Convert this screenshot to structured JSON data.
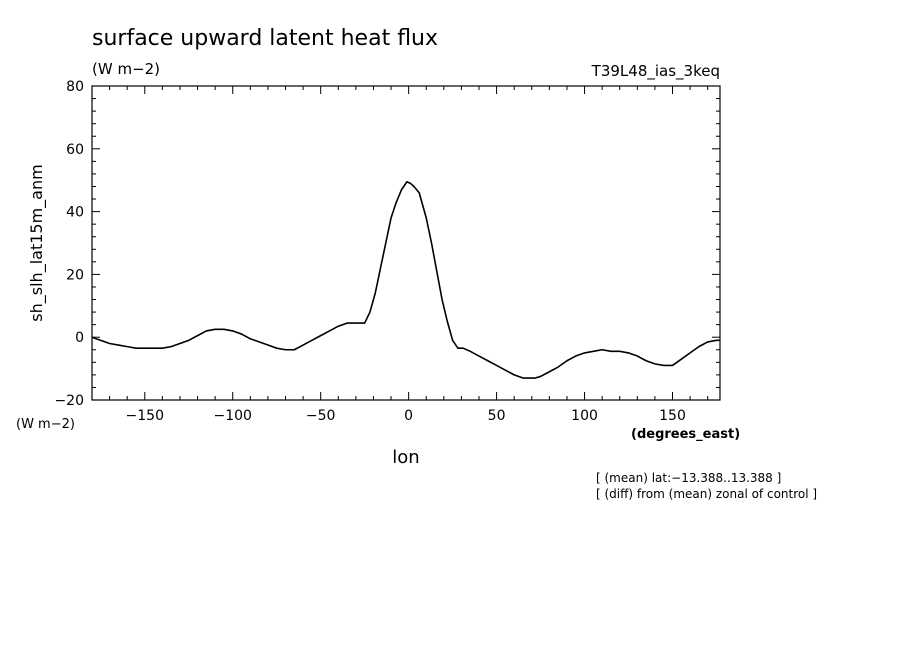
{
  "chart_data": {
    "type": "line",
    "title": "surface upward latent heat flux",
    "subtitle": "(W m−2)",
    "run_label": "T39L48_ias_3keq",
    "ylabel": "sh_slh_lat15m_anm",
    "y_units": "(W m−2)",
    "xlabel": "lon",
    "x_units": "(degrees_east)",
    "notes": [
      "[ (mean) lat:−13.388..13.388 ]",
      "[ (diff) from (mean) zonal of control ]"
    ],
    "xlim": [
      -180,
      177
    ],
    "ylim": [
      -20,
      80
    ],
    "x_major_ticks": [
      -150,
      -100,
      -50,
      0,
      50,
      100,
      150
    ],
    "x_tick_labels": [
      "−150",
      "−100",
      "−50",
      "0",
      "50",
      "100",
      "150"
    ],
    "x_minor_step": 10,
    "y_major_ticks": [
      -20,
      0,
      20,
      40,
      60,
      80
    ],
    "y_tick_labels": [
      "−20",
      "0",
      "20",
      "40",
      "60",
      "80"
    ],
    "y_minor_step": 4,
    "grid": false,
    "line_color": "#000000",
    "series": [
      {
        "x": [
          -180,
          -175,
          -170,
          -165,
          -160,
          -155,
          -150,
          -145,
          -140,
          -135,
          -130,
          -125,
          -120,
          -115,
          -110,
          -105,
          -100,
          -95,
          -90,
          -85,
          -80,
          -75,
          -70,
          -65,
          -60,
          -55,
          -50,
          -45,
          -40,
          -35,
          -30,
          -25,
          -22,
          -19,
          -16,
          -13,
          -10,
          -7,
          -4,
          -1,
          1,
          3,
          6,
          10,
          13,
          16,
          19,
          22,
          25,
          28,
          31,
          35,
          40,
          45,
          50,
          55,
          60,
          65,
          70,
          72,
          75,
          80,
          85,
          90,
          95,
          100,
          105,
          110,
          115,
          120,
          125,
          130,
          135,
          140,
          145,
          150,
          155,
          160,
          165,
          170,
          175,
          177
        ],
        "y": [
          0,
          -1,
          -2,
          -2.5,
          -3,
          -3.5,
          -3.5,
          -3.5,
          -3.5,
          -3,
          -2,
          -1,
          0.5,
          2,
          2.5,
          2.5,
          2,
          1,
          -0.5,
          -1.5,
          -2.5,
          -3.5,
          -4,
          -4,
          -2.5,
          -1,
          0.5,
          2,
          3.5,
          4.5,
          4.5,
          4.5,
          8,
          14,
          22,
          30,
          38,
          43,
          47,
          49.5,
          49,
          48,
          46,
          38,
          30,
          21,
          12,
          5,
          -1,
          -3.5,
          -3.5,
          -4.5,
          -6,
          -7.5,
          -9,
          -10.5,
          -12,
          -13,
          -13,
          -13,
          -12.5,
          -11,
          -9.5,
          -7.5,
          -6,
          -5,
          -4.5,
          -4,
          -4.5,
          -4.5,
          -5,
          -6,
          -7.5,
          -8.5,
          -9,
          -9,
          -7,
          -5,
          -3,
          -1.5,
          -1,
          -1
        ]
      }
    ]
  }
}
